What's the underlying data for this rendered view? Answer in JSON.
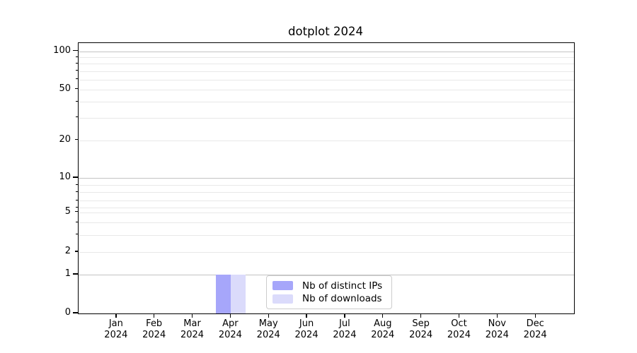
{
  "chart_data": {
    "type": "bar",
    "title": "dotplot 2024",
    "categories": [
      "Jan 2024",
      "Feb 2024",
      "Mar 2024",
      "Apr 2024",
      "May 2024",
      "Jun 2024",
      "Jul 2024",
      "Aug 2024",
      "Sep 2024",
      "Oct 2024",
      "Nov 2024",
      "Dec 2024"
    ],
    "series": [
      {
        "name": "Nb of distinct IPs",
        "color": "#a6a6fa",
        "values": [
          0,
          0,
          0,
          1,
          0,
          0,
          0,
          0,
          0,
          0,
          0,
          0
        ]
      },
      {
        "name": "Nb of downloads",
        "color": "#dbdbfb",
        "values": [
          0,
          0,
          0,
          1,
          0,
          0,
          0,
          0,
          0,
          0,
          0,
          0
        ]
      }
    ],
    "yscale": "symlog",
    "y_tick_labels": [
      "0",
      "1",
      "2",
      "5",
      "10",
      "20",
      "50",
      "100"
    ],
    "ylim": [
      0,
      116
    ],
    "xlabel": "",
    "ylabel": "",
    "grid": "horizontal major+minor",
    "legend_position": "inside lower-center"
  },
  "colors": {
    "major_grid": "#c3c3c3",
    "minor_grid": "#e8e8e8",
    "spine": "#000000",
    "legend_border": "#cccccc",
    "text": "#000000"
  }
}
